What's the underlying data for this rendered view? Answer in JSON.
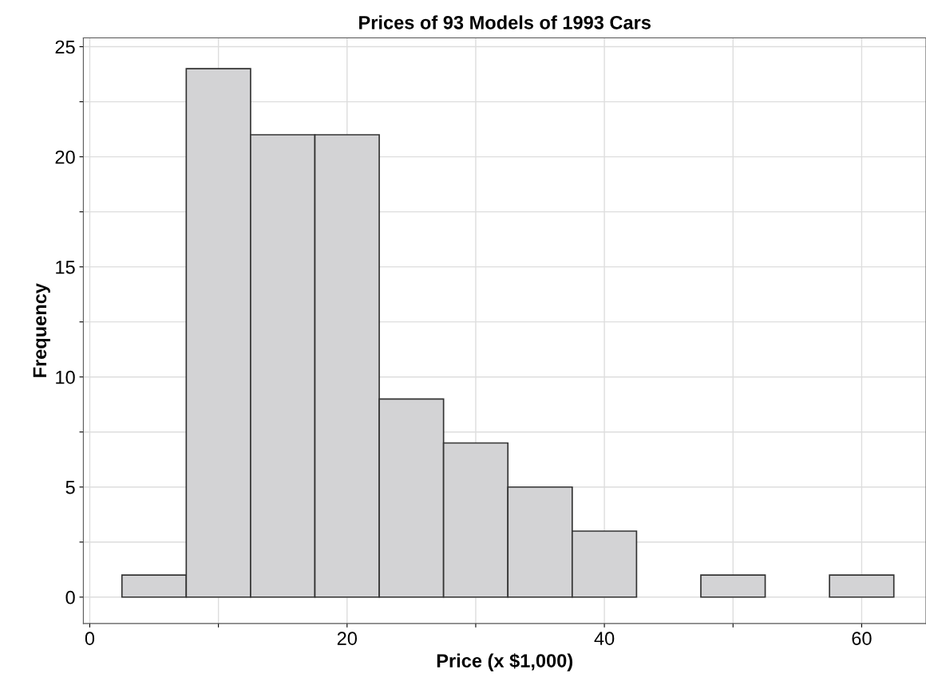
{
  "chart_data": {
    "type": "histogram",
    "title": "Prices of 93 Models of 1993 Cars",
    "xlabel": "Price (x $1,000)",
    "ylabel": "Frequency",
    "bins": [
      2.5,
      7.5,
      12.5,
      17.5,
      22.5,
      27.5,
      32.5,
      37.5,
      42.5,
      47.5,
      52.5,
      57.5,
      62.5
    ],
    "values": [
      1,
      24,
      21,
      21,
      9,
      7,
      5,
      3,
      0,
      1,
      0,
      1
    ],
    "color": "#d3d3d5",
    "xlim": [
      -0.5,
      65
    ],
    "ylim": [
      -1.2,
      25.4
    ],
    "xticks": [
      0,
      {
        "value": 10,
        "label": null
      },
      20,
      {
        "value": 30,
        "label": null
      },
      40,
      {
        "value": 50,
        "label": null
      },
      60
    ],
    "yticks": [
      0,
      {
        "value": 2.5,
        "label": null
      },
      5,
      {
        "value": 7.5,
        "label": null
      },
      10,
      {
        "value": 12.5,
        "label": null
      },
      15,
      {
        "value": 17.5,
        "label": null
      },
      20,
      {
        "value": 22.5,
        "label": null
      },
      25
    ],
    "grid": true
  }
}
